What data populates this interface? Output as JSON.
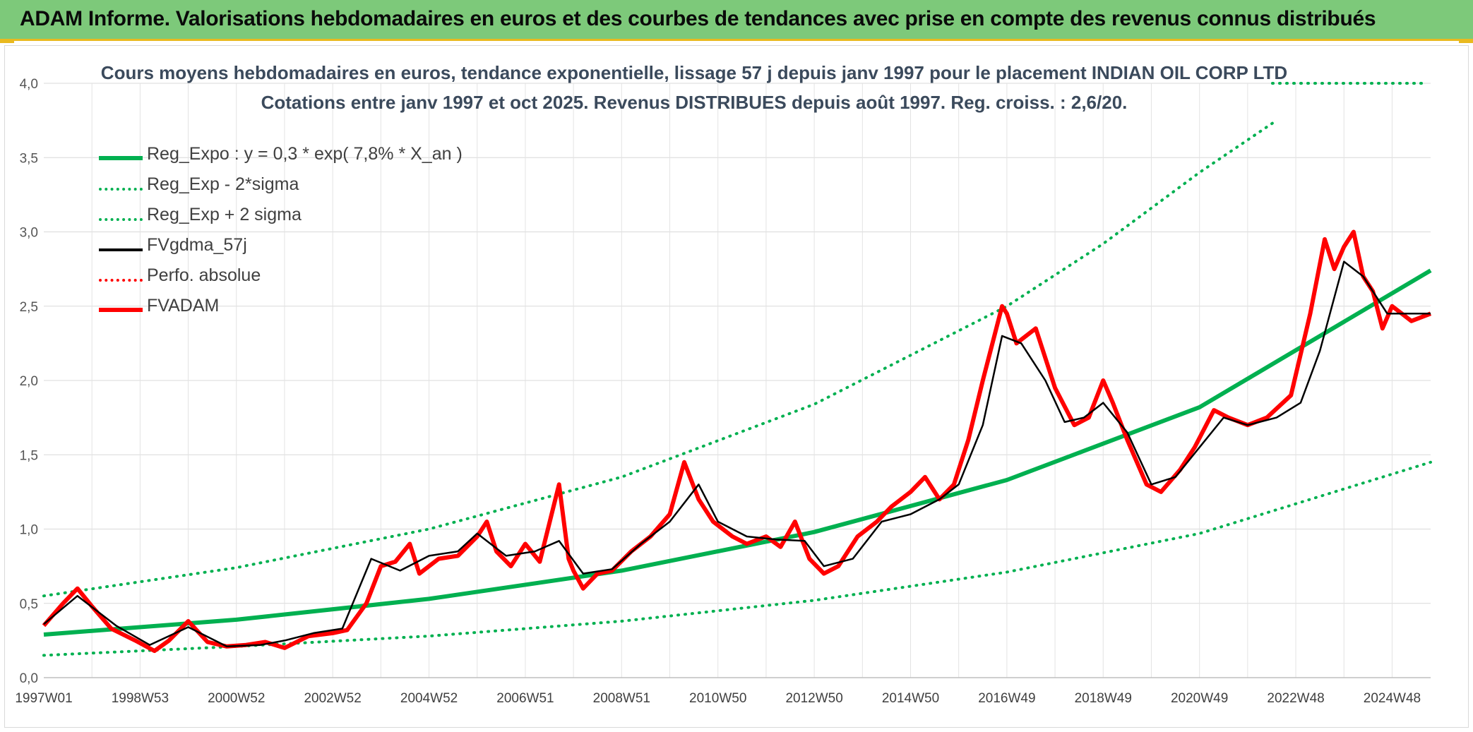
{
  "header": {
    "title": "ADAM Informe. Valorisations hebdomadaires en euros et des courbes de tendances avec prise en compte des revenus connus distribués"
  },
  "chart_data": {
    "type": "line",
    "title": "Cours moyens hebdomadaires en euros, tendance exponentielle, lissage 57 j depuis janv 1997 pour le placement INDIAN OIL CORP LTD",
    "subtitle": "Cotations entre janv 1997 et oct 2025. Revenus DISTRIBUES depuis août 1997. Reg. croiss. : 2,6/20.",
    "xlabel": "",
    "ylabel": "",
    "xlim": [
      1997.0,
      2025.8
    ],
    "ylim": [
      0,
      4.0
    ],
    "y_ticks": [
      "0,0",
      "0,5",
      "1,0",
      "1,5",
      "2,0",
      "2,5",
      "3,0",
      "3,5",
      "4,0"
    ],
    "y_tick_values": [
      0,
      0.5,
      1.0,
      1.5,
      2.0,
      2.5,
      3.0,
      3.5,
      4.0
    ],
    "x_ticks": [
      "1997W01",
      "1998W53",
      "2000W52",
      "2002W52",
      "2004W52",
      "2006W51",
      "2008W51",
      "2010W50",
      "2012W50",
      "2014W50",
      "2016W49",
      "2018W49",
      "2020W49",
      "2022W48",
      "2024W48"
    ],
    "x_tick_values": [
      1997.0,
      1999.0,
      2001.0,
      2003.0,
      2005.0,
      2007.0,
      2009.0,
      2011.0,
      2013.0,
      2015.0,
      2017.0,
      2019.0,
      2021.0,
      2023.0,
      2025.0
    ],
    "legend_position": "top-left",
    "grid": true,
    "series": [
      {
        "name": "Reg_Expo : y = 0,3 * exp( 7,8% *  X_an )",
        "style": "solid-thick",
        "color": "#00b050",
        "x": [
          1997.0,
          2001.0,
          2005.0,
          2009.0,
          2013.0,
          2017.0,
          2021.0,
          2025.8
        ],
        "values": [
          0.29,
          0.39,
          0.53,
          0.72,
          0.98,
          1.33,
          1.82,
          2.74
        ]
      },
      {
        "name": "Reg_Exp - 2*sigma",
        "style": "dotted",
        "color": "#00b050",
        "x": [
          1997.0,
          2001.0,
          2005.0,
          2009.0,
          2013.0,
          2017.0,
          2021.0,
          2025.8
        ],
        "values": [
          0.15,
          0.21,
          0.28,
          0.38,
          0.52,
          0.71,
          0.97,
          1.45
        ]
      },
      {
        "name": "Reg_Exp + 2 sigma",
        "style": "dotted",
        "color": "#00b050",
        "x": [
          1997.0,
          2001.0,
          2005.0,
          2009.0,
          2013.0,
          2017.0,
          2019.0,
          2021.0,
          2022.6
        ],
        "values": [
          0.55,
          0.74,
          1.0,
          1.35,
          1.84,
          2.5,
          2.92,
          3.4,
          3.75
        ]
      },
      {
        "name": "FVgdma_57j",
        "style": "solid",
        "color": "#000000",
        "x": [
          1997.0,
          1997.7,
          1998.5,
          1999.2,
          2000.0,
          2000.8,
          2001.5,
          2002.0,
          2002.6,
          2003.2,
          2003.8,
          2004.4,
          2005.0,
          2005.6,
          2006.0,
          2006.6,
          2007.2,
          2007.7,
          2008.2,
          2008.8,
          2009.4,
          2010.0,
          2010.6,
          2011.0,
          2011.6,
          2012.2,
          2012.8,
          2013.2,
          2013.8,
          2014.4,
          2015.0,
          2015.6,
          2016.0,
          2016.5,
          2016.9,
          2017.3,
          2017.8,
          2018.2,
          2018.6,
          2019.0,
          2019.5,
          2020.0,
          2020.5,
          2021.0,
          2021.5,
          2022.0,
          2022.6,
          2023.1,
          2023.5,
          2024.0,
          2024.4,
          2024.9,
          2025.4,
          2025.8
        ],
        "values": [
          0.36,
          0.55,
          0.35,
          0.22,
          0.34,
          0.21,
          0.22,
          0.25,
          0.3,
          0.33,
          0.8,
          0.72,
          0.82,
          0.85,
          0.97,
          0.82,
          0.85,
          0.92,
          0.7,
          0.73,
          0.9,
          1.05,
          1.3,
          1.05,
          0.95,
          0.93,
          0.92,
          0.75,
          0.8,
          1.05,
          1.1,
          1.2,
          1.3,
          1.7,
          2.3,
          2.25,
          2.0,
          1.72,
          1.75,
          1.85,
          1.65,
          1.3,
          1.35,
          1.55,
          1.75,
          1.7,
          1.75,
          1.85,
          2.2,
          2.8,
          2.7,
          2.45,
          2.45,
          2.45
        ]
      },
      {
        "name": "Perfo. absolue",
        "style": "dotted",
        "color": "#ff0000",
        "x": [],
        "values": []
      },
      {
        "name": "FVADAM",
        "style": "solid-thick",
        "color": "#ff0000",
        "x": [
          1997.0,
          1997.4,
          1997.7,
          1998.0,
          1998.4,
          1998.9,
          1999.3,
          1999.6,
          2000.0,
          2000.4,
          2000.8,
          2001.2,
          2001.6,
          2002.0,
          2002.5,
          2003.0,
          2003.3,
          2003.7,
          2004.0,
          2004.3,
          2004.6,
          2004.8,
          2005.2,
          2005.6,
          2006.0,
          2006.2,
          2006.4,
          2006.7,
          2007.0,
          2007.3,
          2007.7,
          2007.9,
          2008.0,
          2008.2,
          2008.5,
          2008.8,
          2009.2,
          2009.6,
          2010.0,
          2010.3,
          2010.6,
          2010.9,
          2011.3,
          2011.6,
          2012.0,
          2012.3,
          2012.6,
          2012.9,
          2013.2,
          2013.5,
          2013.9,
          2014.3,
          2014.6,
          2015.0,
          2015.3,
          2015.6,
          2015.9,
          2016.2,
          2016.5,
          2016.9,
          2017.0,
          2017.2,
          2017.6,
          2018.0,
          2018.4,
          2018.7,
          2019.0,
          2019.2,
          2019.5,
          2019.9,
          2020.2,
          2020.6,
          2020.9,
          2021.3,
          2021.6,
          2022.0,
          2022.4,
          2022.9,
          2023.3,
          2023.6,
          2023.8,
          2024.0,
          2024.2,
          2024.4,
          2024.6,
          2024.8,
          2025.0,
          2025.2,
          2025.4,
          2025.8
        ],
        "values": [
          0.35,
          0.5,
          0.6,
          0.48,
          0.33,
          0.25,
          0.18,
          0.25,
          0.38,
          0.24,
          0.21,
          0.22,
          0.24,
          0.2,
          0.28,
          0.3,
          0.32,
          0.5,
          0.75,
          0.78,
          0.9,
          0.7,
          0.8,
          0.82,
          0.95,
          1.05,
          0.85,
          0.75,
          0.9,
          0.78,
          1.3,
          0.8,
          0.72,
          0.6,
          0.7,
          0.72,
          0.85,
          0.95,
          1.1,
          1.45,
          1.2,
          1.05,
          0.95,
          0.9,
          0.95,
          0.88,
          1.05,
          0.8,
          0.7,
          0.75,
          0.95,
          1.05,
          1.15,
          1.25,
          1.35,
          1.2,
          1.3,
          1.6,
          2.0,
          2.5,
          2.45,
          2.25,
          2.35,
          1.95,
          1.7,
          1.75,
          2.0,
          1.85,
          1.6,
          1.3,
          1.25,
          1.4,
          1.55,
          1.8,
          1.75,
          1.7,
          1.75,
          1.9,
          2.45,
          2.95,
          2.75,
          2.9,
          3.0,
          2.7,
          2.6,
          2.35,
          2.5,
          2.45,
          2.4,
          2.45
        ]
      }
    ]
  }
}
